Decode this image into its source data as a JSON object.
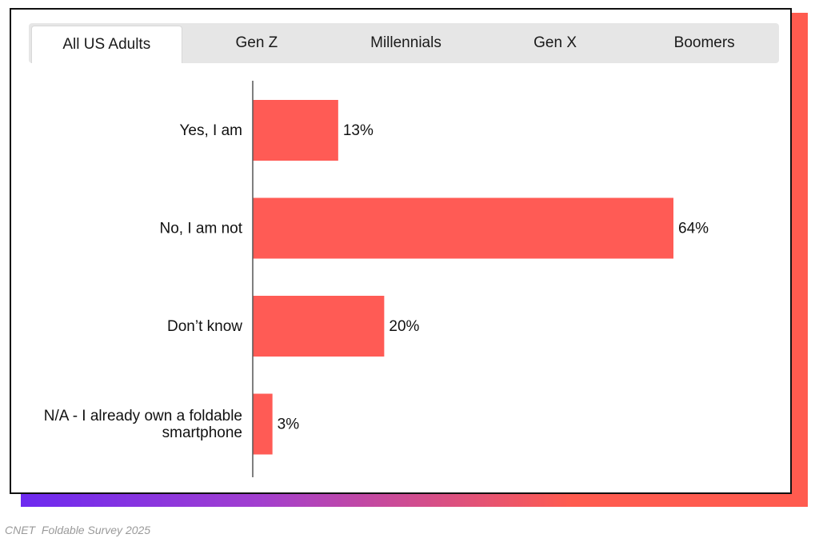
{
  "tabs": [
    {
      "label": "All US Adults",
      "active": true
    },
    {
      "label": "Gen Z",
      "active": false
    },
    {
      "label": "Millennials",
      "active": false
    },
    {
      "label": "Gen X",
      "active": false
    },
    {
      "label": "Boomers",
      "active": false
    }
  ],
  "caption": "CNET  Foldable Survey 2025",
  "colors": {
    "bar": "#ff5b55",
    "axis": "#555555",
    "gradient_start": "#6d2af0",
    "gradient_end": "#ff5b4f"
  },
  "chart_data": {
    "type": "bar",
    "orientation": "horizontal",
    "categories": [
      [
        "Yes, I am"
      ],
      [
        "No, I am not"
      ],
      [
        "Don’t know"
      ],
      [
        "N/A - I already own a foldable",
        "smartphone"
      ]
    ],
    "values": [
      13,
      64,
      20,
      3
    ],
    "value_labels": [
      "13%",
      "64%",
      "20%",
      "3%"
    ],
    "unit": "%",
    "xlim": [
      0,
      100
    ],
    "title": "",
    "xlabel": "",
    "ylabel": "",
    "grid": false
  }
}
